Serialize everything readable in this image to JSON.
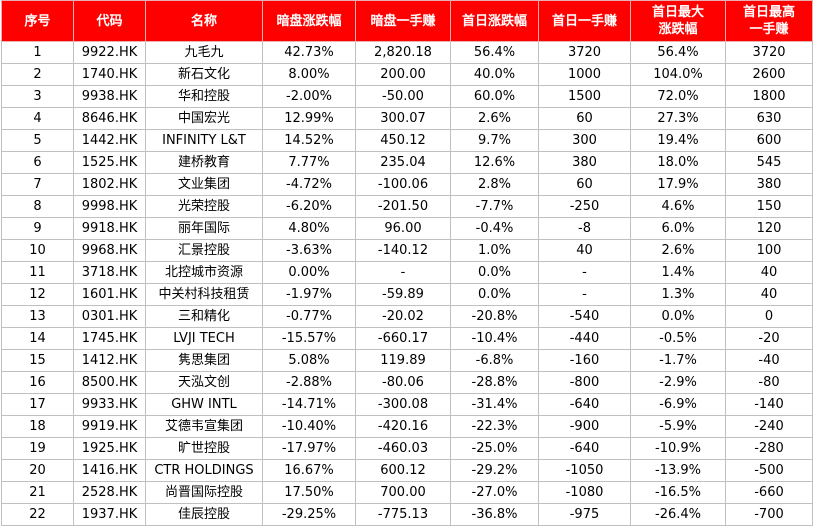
{
  "headers": [
    "序号",
    "代码",
    "名称",
    "暗盘涨跌幅",
    "暗盘一手赚",
    "首日涨跌幅",
    "首日一手赚",
    "首日最大\n涨跌幅",
    "首日最高\n一手赚"
  ],
  "rows": [
    [
      "1",
      "9922.HK",
      "九毛九",
      "42.73%",
      "2,820.18",
      "56.4%",
      "3720",
      "56.4%",
      "3720"
    ],
    [
      "2",
      "1740.HK",
      "新石文化",
      "8.00%",
      "200.00",
      "40.0%",
      "1000",
      "104.0%",
      "2600"
    ],
    [
      "3",
      "9938.HK",
      "华和控股",
      "-2.00%",
      "-50.00",
      "60.0%",
      "1500",
      "72.0%",
      "1800"
    ],
    [
      "4",
      "8646.HK",
      "中国宏光",
      "12.99%",
      "300.07",
      "2.6%",
      "60",
      "27.3%",
      "630"
    ],
    [
      "5",
      "1442.HK",
      "INFINITY L&T",
      "14.52%",
      "450.12",
      "9.7%",
      "300",
      "19.4%",
      "600"
    ],
    [
      "6",
      "1525.HK",
      "建桥教育",
      "7.77%",
      "235.04",
      "12.6%",
      "380",
      "18.0%",
      "545"
    ],
    [
      "7",
      "1802.HK",
      "文业集团",
      "-4.72%",
      "-100.06",
      "2.8%",
      "60",
      "17.9%",
      "380"
    ],
    [
      "8",
      "9998.HK",
      "光荣控股",
      "-6.20%",
      "-201.50",
      "-7.7%",
      "-250",
      "4.6%",
      "150"
    ],
    [
      "9",
      "9918.HK",
      "丽年国际",
      "4.80%",
      "96.00",
      "-0.4%",
      "-8",
      "6.0%",
      "120"
    ],
    [
      "10",
      "9968.HK",
      "汇景控股",
      "-3.63%",
      "-140.12",
      "1.0%",
      "40",
      "2.6%",
      "100"
    ],
    [
      "11",
      "3718.HK",
      "北控城市资源",
      "0.00%",
      "-",
      "0.0%",
      "-",
      "1.4%",
      "40"
    ],
    [
      "12",
      "1601.HK",
      "中关村科技租赁",
      "-1.97%",
      "-59.89",
      "0.0%",
      "-",
      "1.3%",
      "40"
    ],
    [
      "13",
      "0301.HK",
      "三和精化",
      "-0.77%",
      "-20.02",
      "-20.8%",
      "-540",
      "0.0%",
      "0"
    ],
    [
      "14",
      "1745.HK",
      "LVJI TECH",
      "-15.57%",
      "-660.17",
      "-10.4%",
      "-440",
      "-0.5%",
      "-20"
    ],
    [
      "15",
      "1412.HK",
      "隽思集团",
      "5.08%",
      "119.89",
      "-6.8%",
      "-160",
      "-1.7%",
      "-40"
    ],
    [
      "16",
      "8500.HK",
      "天泓文创",
      "-2.88%",
      "-80.06",
      "-28.8%",
      "-800",
      "-2.9%",
      "-80"
    ],
    [
      "17",
      "9933.HK",
      "GHW INTL",
      "-14.71%",
      "-300.08",
      "-31.4%",
      "-640",
      "-6.9%",
      "-140"
    ],
    [
      "18",
      "9919.HK",
      "艾德韦宣集团",
      "-10.40%",
      "-420.16",
      "-22.3%",
      "-900",
      "-5.9%",
      "-240"
    ],
    [
      "19",
      "1925.HK",
      "旷世控股",
      "-17.97%",
      "-460.03",
      "-25.0%",
      "-640",
      "-10.9%",
      "-280"
    ],
    [
      "20",
      "1416.HK",
      "CTR HOLDINGS",
      "16.67%",
      "600.12",
      "-29.2%",
      "-1050",
      "-13.9%",
      "-500"
    ],
    [
      "21",
      "2528.HK",
      "尚晋国际控股",
      "17.50%",
      "700.00",
      "-27.0%",
      "-1080",
      "-16.5%",
      "-660"
    ],
    [
      "22",
      "1937.HK",
      "佳辰控股",
      "-29.25%",
      "-775.13",
      "-36.8%",
      "-975",
      "-26.4%",
      "-700"
    ]
  ],
  "colors": {
    "header_bg": "#ff0000",
    "header_text": "#ffffff",
    "grid": "#c0c0c0"
  }
}
